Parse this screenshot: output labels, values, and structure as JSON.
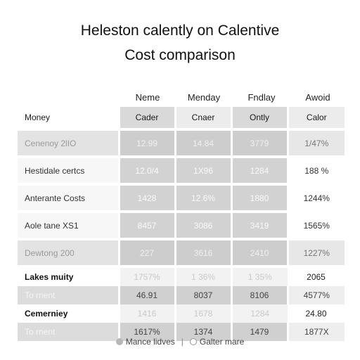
{
  "title": "Heleston calently on Calentive",
  "subtitle": "Cost comparison",
  "columns": [
    "Neme",
    "Menday",
    "Fndlay",
    "Awoid"
  ],
  "header_row": {
    "label": "Money",
    "cells": [
      "Cader",
      "Cnaer",
      "Ontly",
      "Calor"
    ]
  },
  "rows": [
    {
      "label": "Cenenoy 2lIO",
      "values": [
        "12.99",
        "14.84",
        "3779",
        "1/47%"
      ]
    },
    {
      "label": "Hestidale certcs",
      "values": [
        "12.0/4",
        "1X96",
        "1284",
        "188 %"
      ]
    },
    {
      "label": "Anterante Costs",
      "values": [
        "1428",
        "12.6%",
        "1880",
        "1244%"
      ]
    },
    {
      "label": "Aole tane XS1",
      "values": [
        "8457",
        "3086",
        "3419",
        "1565%"
      ]
    },
    {
      "label": "Dewtong 200",
      "values": [
        "227",
        "3616",
        "2410",
        "1227%"
      ]
    }
  ],
  "section1": {
    "label": "Lakes muity",
    "values": [
      "1757%",
      "1 36%",
      "1 35%",
      "2065"
    ]
  },
  "sub1": {
    "label": "To rnent",
    "values": [
      "46.91",
      "8037",
      "8106",
      "4577%"
    ]
  },
  "section2": {
    "label": "Cemerniey",
    "values": [
      "1416",
      "1678",
      "1284",
      "24.80"
    ]
  },
  "sub2": {
    "label": "To rnent",
    "values": [
      "1617%",
      "1374",
      "1479",
      "1877X"
    ]
  },
  "legend": {
    "item1": "Mance lidves",
    "item2": "Galter mare"
  }
}
